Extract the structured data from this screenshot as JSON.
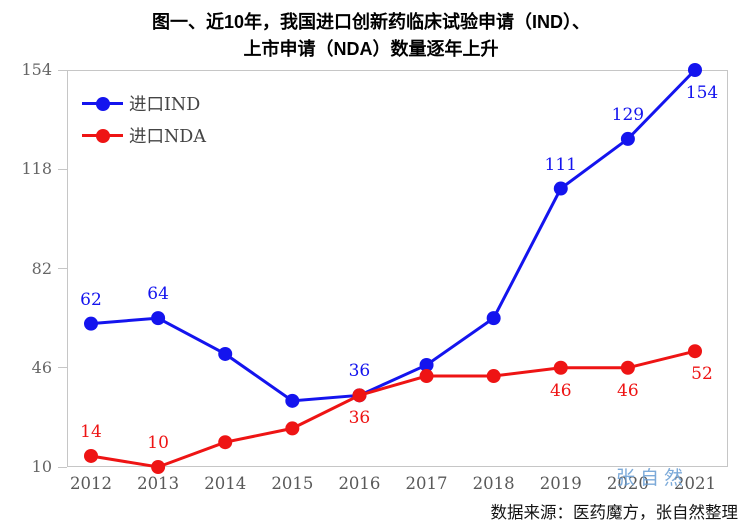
{
  "title": {
    "line1": "图一、近10年，我国进口创新药临床试验申请（IND）、",
    "line2": "上市申请（NDA）数量逐年上升"
  },
  "legend": {
    "items": [
      {
        "label": "进口IND",
        "color": "#1414ee"
      },
      {
        "label": "进口NDA",
        "color": "#ee1414"
      }
    ]
  },
  "footer": {
    "source_text": "数据来源：医药魔方，张自然整理"
  },
  "watermark": {
    "text": "张自然",
    "color": "#6b9fd4"
  },
  "colors": {
    "ind_blue": "#1414ee",
    "nda_red": "#ee1414",
    "axis_gray": "#c6c6c6",
    "tick_label_gray": "#595959"
  },
  "chart_data": {
    "type": "line",
    "title": "近10年我国进口创新药IND、NDA申请数量",
    "categories": [
      "2012",
      "2013",
      "2014",
      "2015",
      "2016",
      "2017",
      "2018",
      "2019",
      "2020",
      "2021"
    ],
    "series": [
      {
        "name": "进口IND",
        "color": "#1414ee",
        "values": [
          62,
          64,
          51,
          34,
          36,
          47,
          64,
          111,
          129,
          154
        ],
        "point_labels": [
          {
            "index": 0,
            "text": "62",
            "placement": "above"
          },
          {
            "index": 1,
            "text": "64",
            "placement": "above"
          },
          {
            "index": 4,
            "text": "36",
            "placement": "above"
          },
          {
            "index": 7,
            "text": "111",
            "placement": "above"
          },
          {
            "index": 8,
            "text": "129",
            "placement": "above"
          },
          {
            "index": 9,
            "text": "154",
            "placement": "below-right"
          }
        ]
      },
      {
        "name": "进口NDA",
        "color": "#ee1414",
        "values": [
          14,
          10,
          19,
          24,
          36,
          43,
          43,
          46,
          46,
          52
        ],
        "point_labels": [
          {
            "index": 0,
            "text": "14",
            "placement": "above"
          },
          {
            "index": 1,
            "text": "10",
            "placement": "above"
          },
          {
            "index": 4,
            "text": "36",
            "placement": "below"
          },
          {
            "index": 7,
            "text": "46",
            "placement": "below"
          },
          {
            "index": 8,
            "text": "46",
            "placement": "below"
          },
          {
            "index": 9,
            "text": "52",
            "placement": "below-right"
          }
        ]
      }
    ],
    "yticks": [
      154,
      118,
      82,
      46,
      10
    ],
    "ylim": [
      10,
      154
    ],
    "xlabel": "",
    "ylabel": "",
    "grid": false,
    "legend_position": "top-left"
  }
}
